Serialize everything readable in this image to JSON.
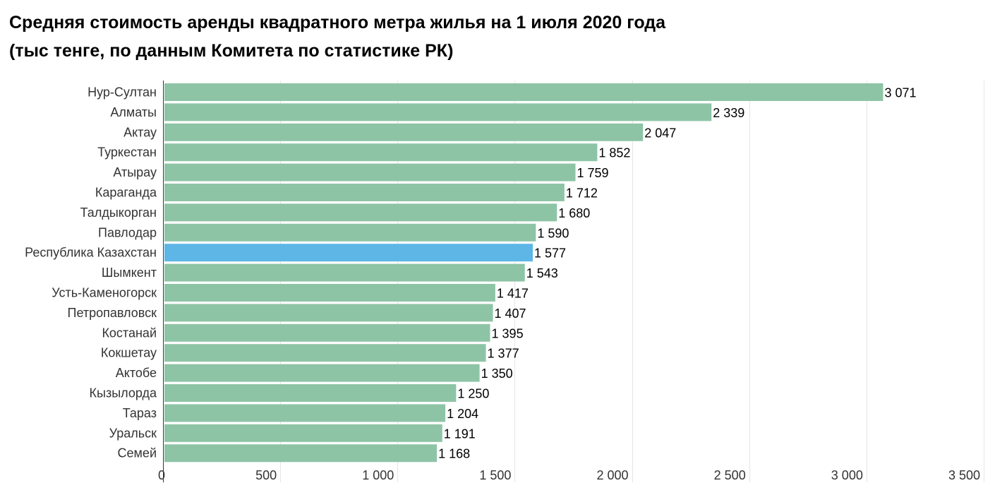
{
  "title_line1": "Средняя стоимость аренды квадратного метра жилья на 1 июля 2020 года",
  "title_line2": "(тыс тенге, по данным Комитета по статистике РК)",
  "colors": {
    "bar": "#8ec4a6",
    "highlight_bar": "#5db6e5",
    "grid": "#e6e6e6",
    "axis": "#333333"
  },
  "chart_data": {
    "type": "bar",
    "orientation": "horizontal",
    "title": "Средняя стоимость аренды квадратного метра жилья на 1 июля 2020 года (тыс тенге, по данным Комитета по статистике РК)",
    "categories": [
      "Нур-Султан",
      "Алматы",
      "Актау",
      "Туркестан",
      "Атырау",
      "Караганда",
      "Талдыкорган",
      "Павлодар",
      "Республика Казахстан",
      "Шымкент",
      "Усть-Каменогорск",
      "Петропавловск",
      "Костанай",
      "Кокшетау",
      "Актобе",
      "Кызылорда",
      "Тараз",
      "Уральск",
      "Семей"
    ],
    "values": [
      3071,
      2339,
      2047,
      1852,
      1759,
      1712,
      1680,
      1590,
      1577,
      1543,
      1417,
      1407,
      1395,
      1377,
      1350,
      1250,
      1204,
      1191,
      1168
    ],
    "value_labels": [
      "3 071",
      "2 339",
      "2 047",
      "1 852",
      "1 759",
      "1 712",
      "1 680",
      "1 590",
      "1 577",
      "1 543",
      "1 417",
      "1 407",
      "1 395",
      "1 377",
      "1 350",
      "1 250",
      "1 204",
      "1 191",
      "1 168"
    ],
    "highlight": "Республика Казахстан",
    "xlim": [
      0,
      3500
    ],
    "xticks": [
      0,
      500,
      1000,
      1500,
      2000,
      2500,
      3000,
      3500
    ],
    "xtick_labels": [
      "0",
      "500",
      "1 000",
      "1 500",
      "2 000",
      "2 500",
      "3 000",
      "3 500"
    ],
    "grid": true,
    "xlabel": "",
    "ylabel": ""
  }
}
